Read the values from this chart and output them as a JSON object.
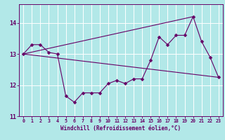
{
  "xlabel": "Windchill (Refroidissement éolien,°C)",
  "background_color": "#b2e8e8",
  "line_color": "#660066",
  "grid_color": "#ffffff",
  "xlim": [
    -0.5,
    23.5
  ],
  "ylim": [
    11.0,
    14.6
  ],
  "yticks": [
    11,
    12,
    13,
    14
  ],
  "xticks": [
    0,
    1,
    2,
    3,
    4,
    5,
    6,
    7,
    8,
    9,
    10,
    11,
    12,
    13,
    14,
    15,
    16,
    17,
    18,
    19,
    20,
    21,
    22,
    23
  ],
  "line1_x": [
    0,
    1,
    2,
    3,
    4,
    5,
    6,
    7,
    8,
    9,
    10,
    11,
    12,
    13,
    14,
    15,
    16,
    17,
    18,
    19,
    20,
    21,
    22,
    23
  ],
  "line1_y": [
    13.0,
    13.3,
    13.3,
    13.05,
    13.0,
    11.65,
    11.45,
    11.75,
    11.75,
    11.75,
    12.05,
    12.15,
    12.05,
    12.2,
    12.2,
    12.8,
    13.55,
    13.3,
    13.6,
    13.6,
    14.2,
    13.4,
    12.9,
    12.25
  ],
  "line2_x": [
    0,
    23
  ],
  "line2_y": [
    13.0,
    12.25
  ],
  "line3_x": [
    0,
    20
  ],
  "line3_y": [
    13.0,
    14.2
  ]
}
